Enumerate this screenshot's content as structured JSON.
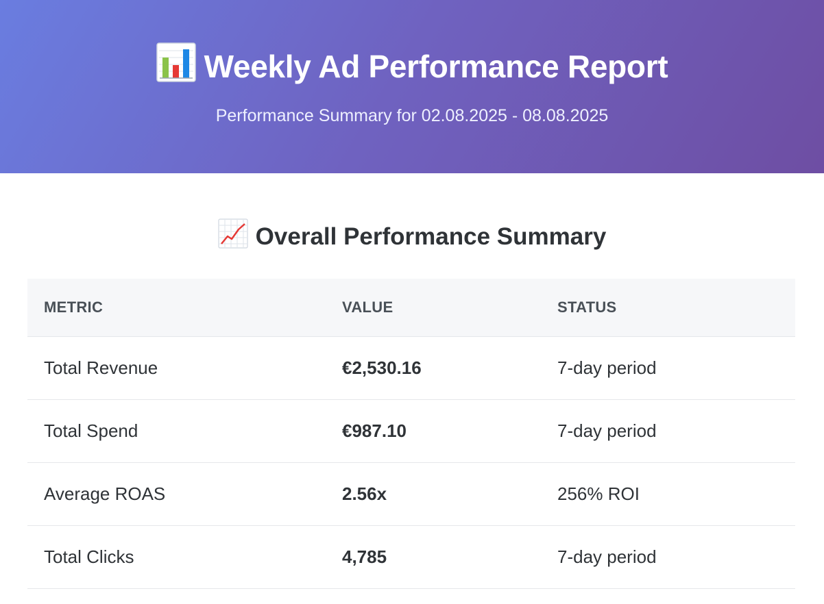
{
  "header": {
    "title_icon": "bar-chart-icon",
    "title": "Weekly Ad Performance Report",
    "subtitle": "Performance Summary for 02.08.2025 - 08.08.2025",
    "colors": {
      "gradient_start": "#6a7de0",
      "gradient_end": "#6e4ea3"
    }
  },
  "summary": {
    "title_icon": "chart-increasing-icon",
    "title": "Overall Performance Summary",
    "columns": [
      "METRIC",
      "VALUE",
      "STATUS"
    ],
    "rows": [
      {
        "metric": "Total Revenue",
        "value": "€2,530.16",
        "status": "7-day period"
      },
      {
        "metric": "Total Spend",
        "value": "€987.10",
        "status": "7-day period"
      },
      {
        "metric": "Average ROAS",
        "value": "2.56x",
        "status": "256% ROI"
      },
      {
        "metric": "Total Clicks",
        "value": "4,785",
        "status": "7-day period"
      }
    ]
  }
}
